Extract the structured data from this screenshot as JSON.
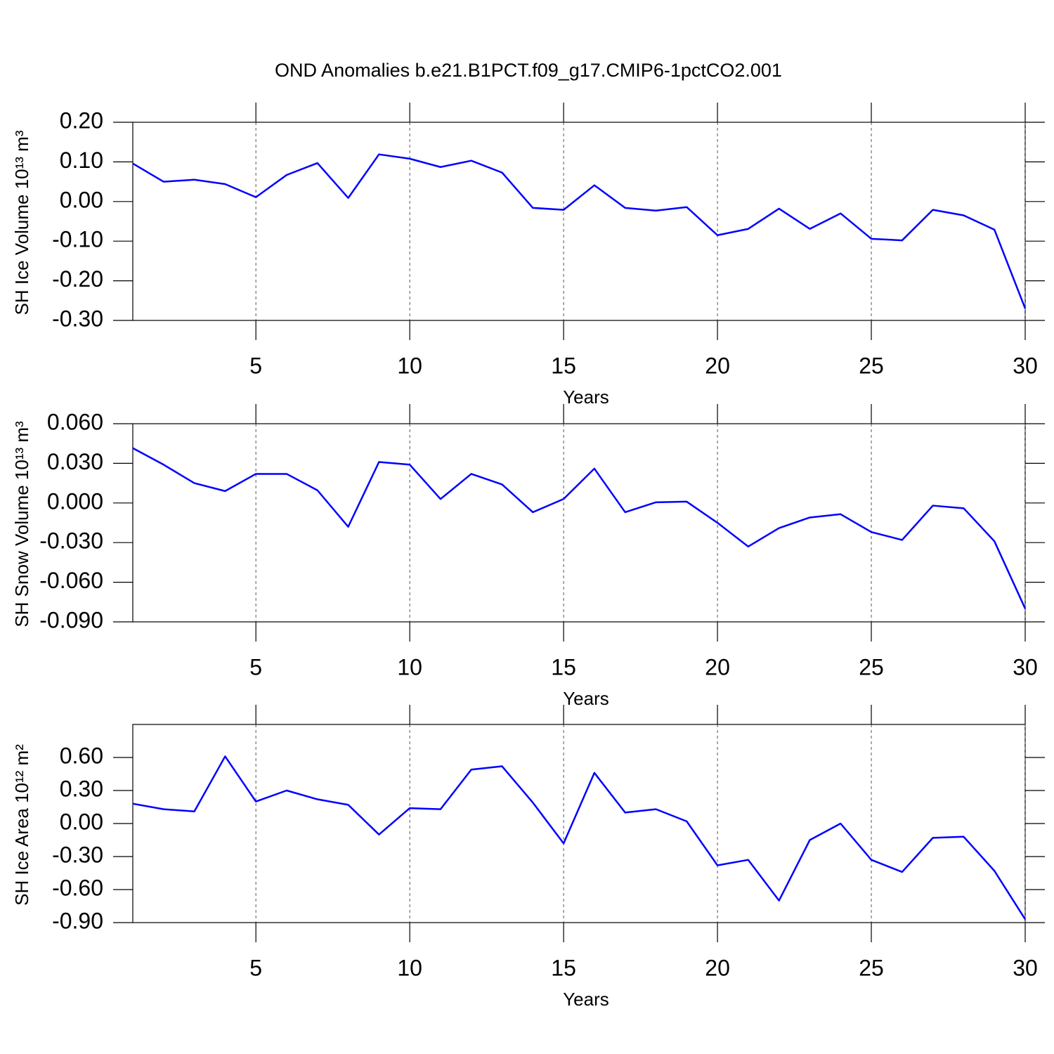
{
  "title": "OND Anomalies b.e21.B1PCT.f09_g17.CMIP6-1pctCO2.001",
  "chart_data": [
    {
      "type": "line",
      "ylabel": "SH Ice Volume 10¹³ m³",
      "xlabel": "Years",
      "color": "#0000ff",
      "x": [
        1,
        2,
        3,
        4,
        5,
        6,
        7,
        8,
        9,
        10,
        11,
        12,
        13,
        14,
        15,
        16,
        17,
        18,
        19,
        20,
        21,
        22,
        23,
        24,
        25,
        26,
        27,
        28,
        29,
        30
      ],
      "values": [
        0.096,
        0.05,
        0.055,
        0.044,
        0.011,
        0.067,
        0.097,
        0.009,
        0.119,
        0.108,
        0.087,
        0.103,
        0.073,
        -0.016,
        -0.021,
        0.041,
        -0.016,
        -0.023,
        -0.014,
        -0.085,
        -0.069,
        -0.018,
        -0.069,
        -0.03,
        -0.094,
        -0.098,
        -0.021,
        -0.035,
        -0.071,
        -0.27
      ],
      "xlim": [
        1,
        30
      ],
      "xticks": [
        5,
        10,
        15,
        20,
        25,
        30
      ],
      "ylim": [
        -0.3,
        0.2
      ],
      "yticks": [
        {
          "value": -0.3,
          "label": "-0.30"
        },
        {
          "value": -0.2,
          "label": "-0.20"
        },
        {
          "value": -0.1,
          "label": "-0.10"
        },
        {
          "value": 0,
          "label": "0.00"
        },
        {
          "value": 0.1,
          "label": "0.10"
        },
        {
          "value": 0.2,
          "label": "0.20"
        }
      ],
      "xgrid": true
    },
    {
      "type": "line",
      "ylabel": "SH Snow Volume 10¹³ m³",
      "xlabel": "Years",
      "color": "#0000ff",
      "x": [
        1,
        2,
        3,
        4,
        5,
        6,
        7,
        8,
        9,
        10,
        11,
        12,
        13,
        14,
        15,
        16,
        17,
        18,
        19,
        20,
        21,
        22,
        23,
        24,
        25,
        26,
        27,
        28,
        29,
        30
      ],
      "values": [
        0.0415,
        0.029,
        0.015,
        0.009,
        0.022,
        0.022,
        0.0096,
        -0.018,
        0.031,
        0.029,
        0.003,
        0.022,
        0.014,
        -0.007,
        0.003,
        0.026,
        -0.007,
        0.0005,
        0.001,
        -0.015,
        -0.033,
        -0.019,
        -0.011,
        -0.0085,
        -0.022,
        -0.028,
        -0.002,
        -0.004,
        -0.029,
        -0.08
      ],
      "xlim": [
        1,
        30
      ],
      "xticks": [
        5,
        10,
        15,
        20,
        25,
        30
      ],
      "ylim": [
        -0.09,
        0.06
      ],
      "yticks": [
        {
          "value": -0.09,
          "label": "-0.090"
        },
        {
          "value": -0.06,
          "label": "-0.060"
        },
        {
          "value": -0.03,
          "label": "-0.030"
        },
        {
          "value": 0,
          "label": "0.000"
        },
        {
          "value": 0.03,
          "label": "0.030"
        },
        {
          "value": 0.06,
          "label": "0.060"
        }
      ],
      "xgrid": true
    },
    {
      "type": "line",
      "ylabel": "SH Ice Area 10¹² m²",
      "xlabel": "Years",
      "color": "#0000ff",
      "x": [
        1,
        2,
        3,
        4,
        5,
        6,
        7,
        8,
        9,
        10,
        11,
        12,
        13,
        14,
        15,
        16,
        17,
        18,
        19,
        20,
        21,
        22,
        23,
        24,
        25,
        26,
        27,
        28,
        29,
        30
      ],
      "values": [
        0.18,
        0.13,
        0.11,
        0.61,
        0.2,
        0.3,
        0.22,
        0.17,
        -0.1,
        0.14,
        0.13,
        0.49,
        0.52,
        0.19,
        -0.18,
        0.46,
        0.1,
        0.13,
        0.02,
        -0.38,
        -0.33,
        -0.7,
        -0.15,
        0.0,
        -0.33,
        -0.44,
        -0.13,
        -0.12,
        -0.43,
        -0.87
      ],
      "xlim": [
        1,
        30
      ],
      "xticks": [
        5,
        10,
        15,
        20,
        25,
        30
      ],
      "ylim": [
        -0.9,
        0.9
      ],
      "yticks": [
        {
          "value": -0.9,
          "label": "-0.90"
        },
        {
          "value": -0.6,
          "label": "-0.60"
        },
        {
          "value": -0.3,
          "label": "-0.30"
        },
        {
          "value": 0,
          "label": "0.00"
        },
        {
          "value": 0.3,
          "label": "0.30"
        },
        {
          "value": 0.6,
          "label": "0.60"
        }
      ],
      "xgrid": true
    }
  ]
}
